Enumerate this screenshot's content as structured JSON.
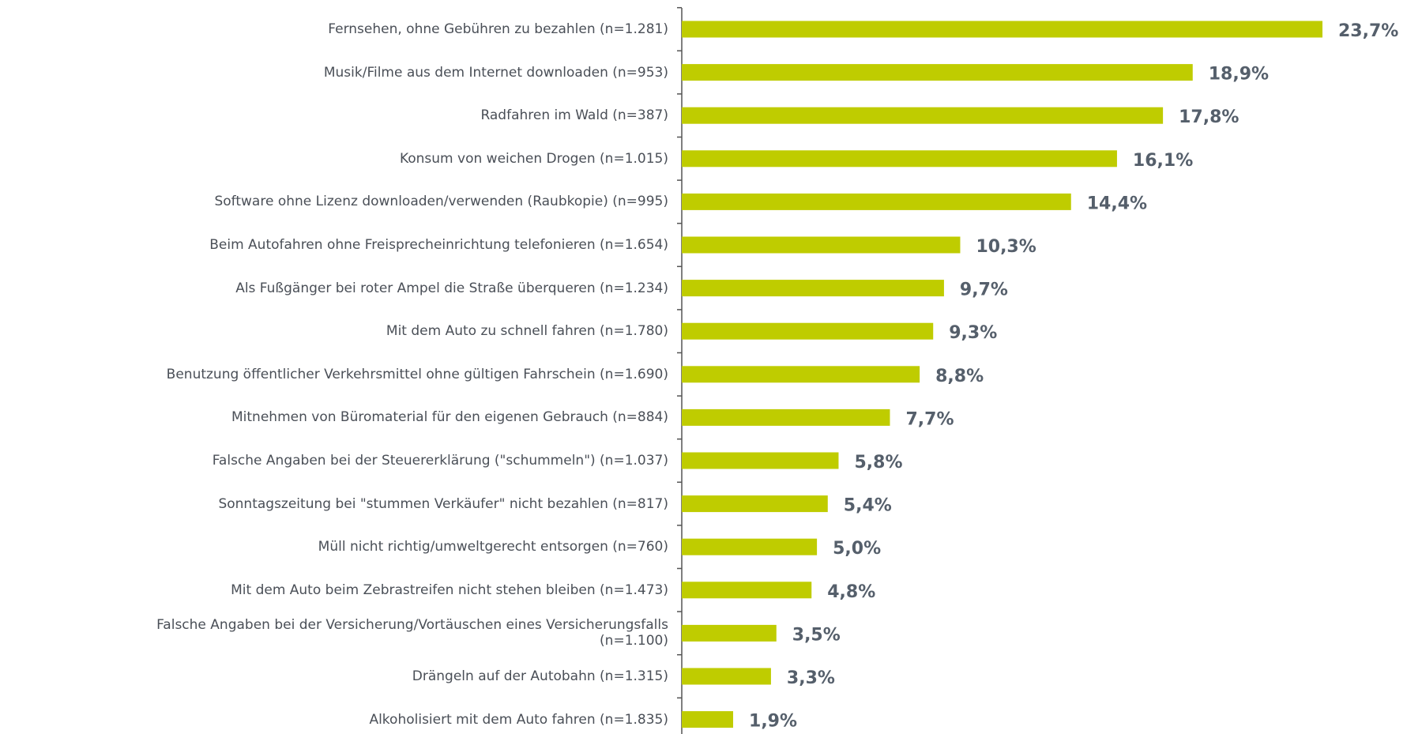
{
  "chart_data": {
    "type": "hbar",
    "categories": [
      "Fernsehen, ohne Gebühren zu bezahlen (n=1.281)",
      "Musik/Filme aus dem Internet downloaden (n=953)",
      "Radfahren im Wald (n=387)",
      "Konsum von weichen Drogen (n=1.015)",
      "Software ohne Lizenz downloaden/verwenden (Raubkopie) (n=995)",
      "Beim Autofahren ohne Freisprecheinrichtung telefonieren (n=1.654)",
      "Als Fußgänger bei roter Ampel die Straße überqueren (n=1.234)",
      "Mit dem Auto zu schnell fahren (n=1.780)",
      "Benutzung öffentlicher Verkehrsmittel ohne gültigen Fahrschein (n=1.690)",
      "Mitnehmen von Büromaterial für den eigenen Gebrauch (n=884)",
      "Falsche Angaben bei der Steuererklärung (\"schummeln\") (n=1.037)",
      "Sonntagszeitung bei \"stummen Verkäufer\" nicht bezahlen (n=817)",
      "Müll nicht richtig/umweltgerecht entsorgen (n=760)",
      "Mit dem Auto beim Zebrastreifen nicht stehen bleiben (n=1.473)",
      "Falsche Angaben bei der Versicherung/Vortäuschen eines Versicherungsfalls\n(n=1.100)",
      "Drängeln auf der Autobahn (n=1.315)",
      "Alkoholisiert mit dem Auto fahren (n=1.835)"
    ],
    "values": [
      23.7,
      18.9,
      17.8,
      16.1,
      14.4,
      10.3,
      9.7,
      9.3,
      8.8,
      7.7,
      5.8,
      5.4,
      5.0,
      4.8,
      3.5,
      3.3,
      1.9
    ],
    "value_labels": [
      "23,7%",
      "18,9%",
      "17,8%",
      "16,1%",
      "14,4%",
      "10,3%",
      "9,7%",
      "9,3%",
      "8,8%",
      "7,7%",
      "5,8%",
      "5,4%",
      "5,0%",
      "4,8%",
      "3,5%",
      "3,3%",
      "1,9%"
    ],
    "color": "#bfcc00"
  }
}
